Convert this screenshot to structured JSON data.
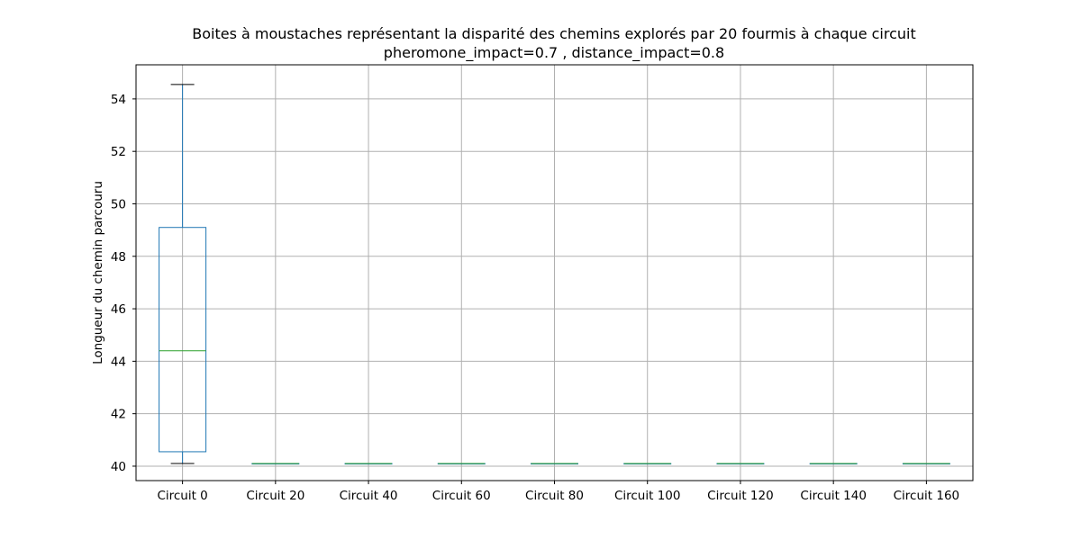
{
  "chart_data": {
    "type": "boxplot",
    "title": "Boites à moustaches représentant la disparité des chemins explorés par 20 fourmis à chaque circuit",
    "subtitle": "pheromone_impact=0.7 , distance_impact=0.8",
    "xlabel": "",
    "ylabel": "Longueur du chemin parcouru",
    "ylim": [
      39.45,
      55.3
    ],
    "yticks": [
      40,
      42,
      44,
      46,
      48,
      50,
      52,
      54
    ],
    "grid": true,
    "categories": [
      "Circuit 0",
      "Circuit 20",
      "Circuit 40",
      "Circuit 60",
      "Circuit 80",
      "Circuit 100",
      "Circuit 120",
      "Circuit 140",
      "Circuit 160"
    ],
    "boxes": [
      {
        "whisker_low": 40.1,
        "q1": 40.55,
        "median": 44.4,
        "q3": 49.1,
        "whisker_high": 54.55
      },
      {
        "whisker_low": 40.1,
        "q1": 40.1,
        "median": 40.1,
        "q3": 40.1,
        "whisker_high": 40.1
      },
      {
        "whisker_low": 40.1,
        "q1": 40.1,
        "median": 40.1,
        "q3": 40.1,
        "whisker_high": 40.1
      },
      {
        "whisker_low": 40.1,
        "q1": 40.1,
        "median": 40.1,
        "q3": 40.1,
        "whisker_high": 40.1
      },
      {
        "whisker_low": 40.1,
        "q1": 40.1,
        "median": 40.1,
        "q3": 40.1,
        "whisker_high": 40.1
      },
      {
        "whisker_low": 40.1,
        "q1": 40.1,
        "median": 40.1,
        "q3": 40.1,
        "whisker_high": 40.1
      },
      {
        "whisker_low": 40.1,
        "q1": 40.1,
        "median": 40.1,
        "q3": 40.1,
        "whisker_high": 40.1
      },
      {
        "whisker_low": 40.1,
        "q1": 40.1,
        "median": 40.1,
        "q3": 40.1,
        "whisker_high": 40.1
      },
      {
        "whisker_low": 40.1,
        "q1": 40.1,
        "median": 40.1,
        "q3": 40.1,
        "whisker_high": 40.1
      }
    ],
    "colors": {
      "box": "#1f77b4",
      "median": "#2ca02c",
      "cap": "#000000",
      "grid": "#b0b0b0",
      "axis": "#000000"
    }
  }
}
